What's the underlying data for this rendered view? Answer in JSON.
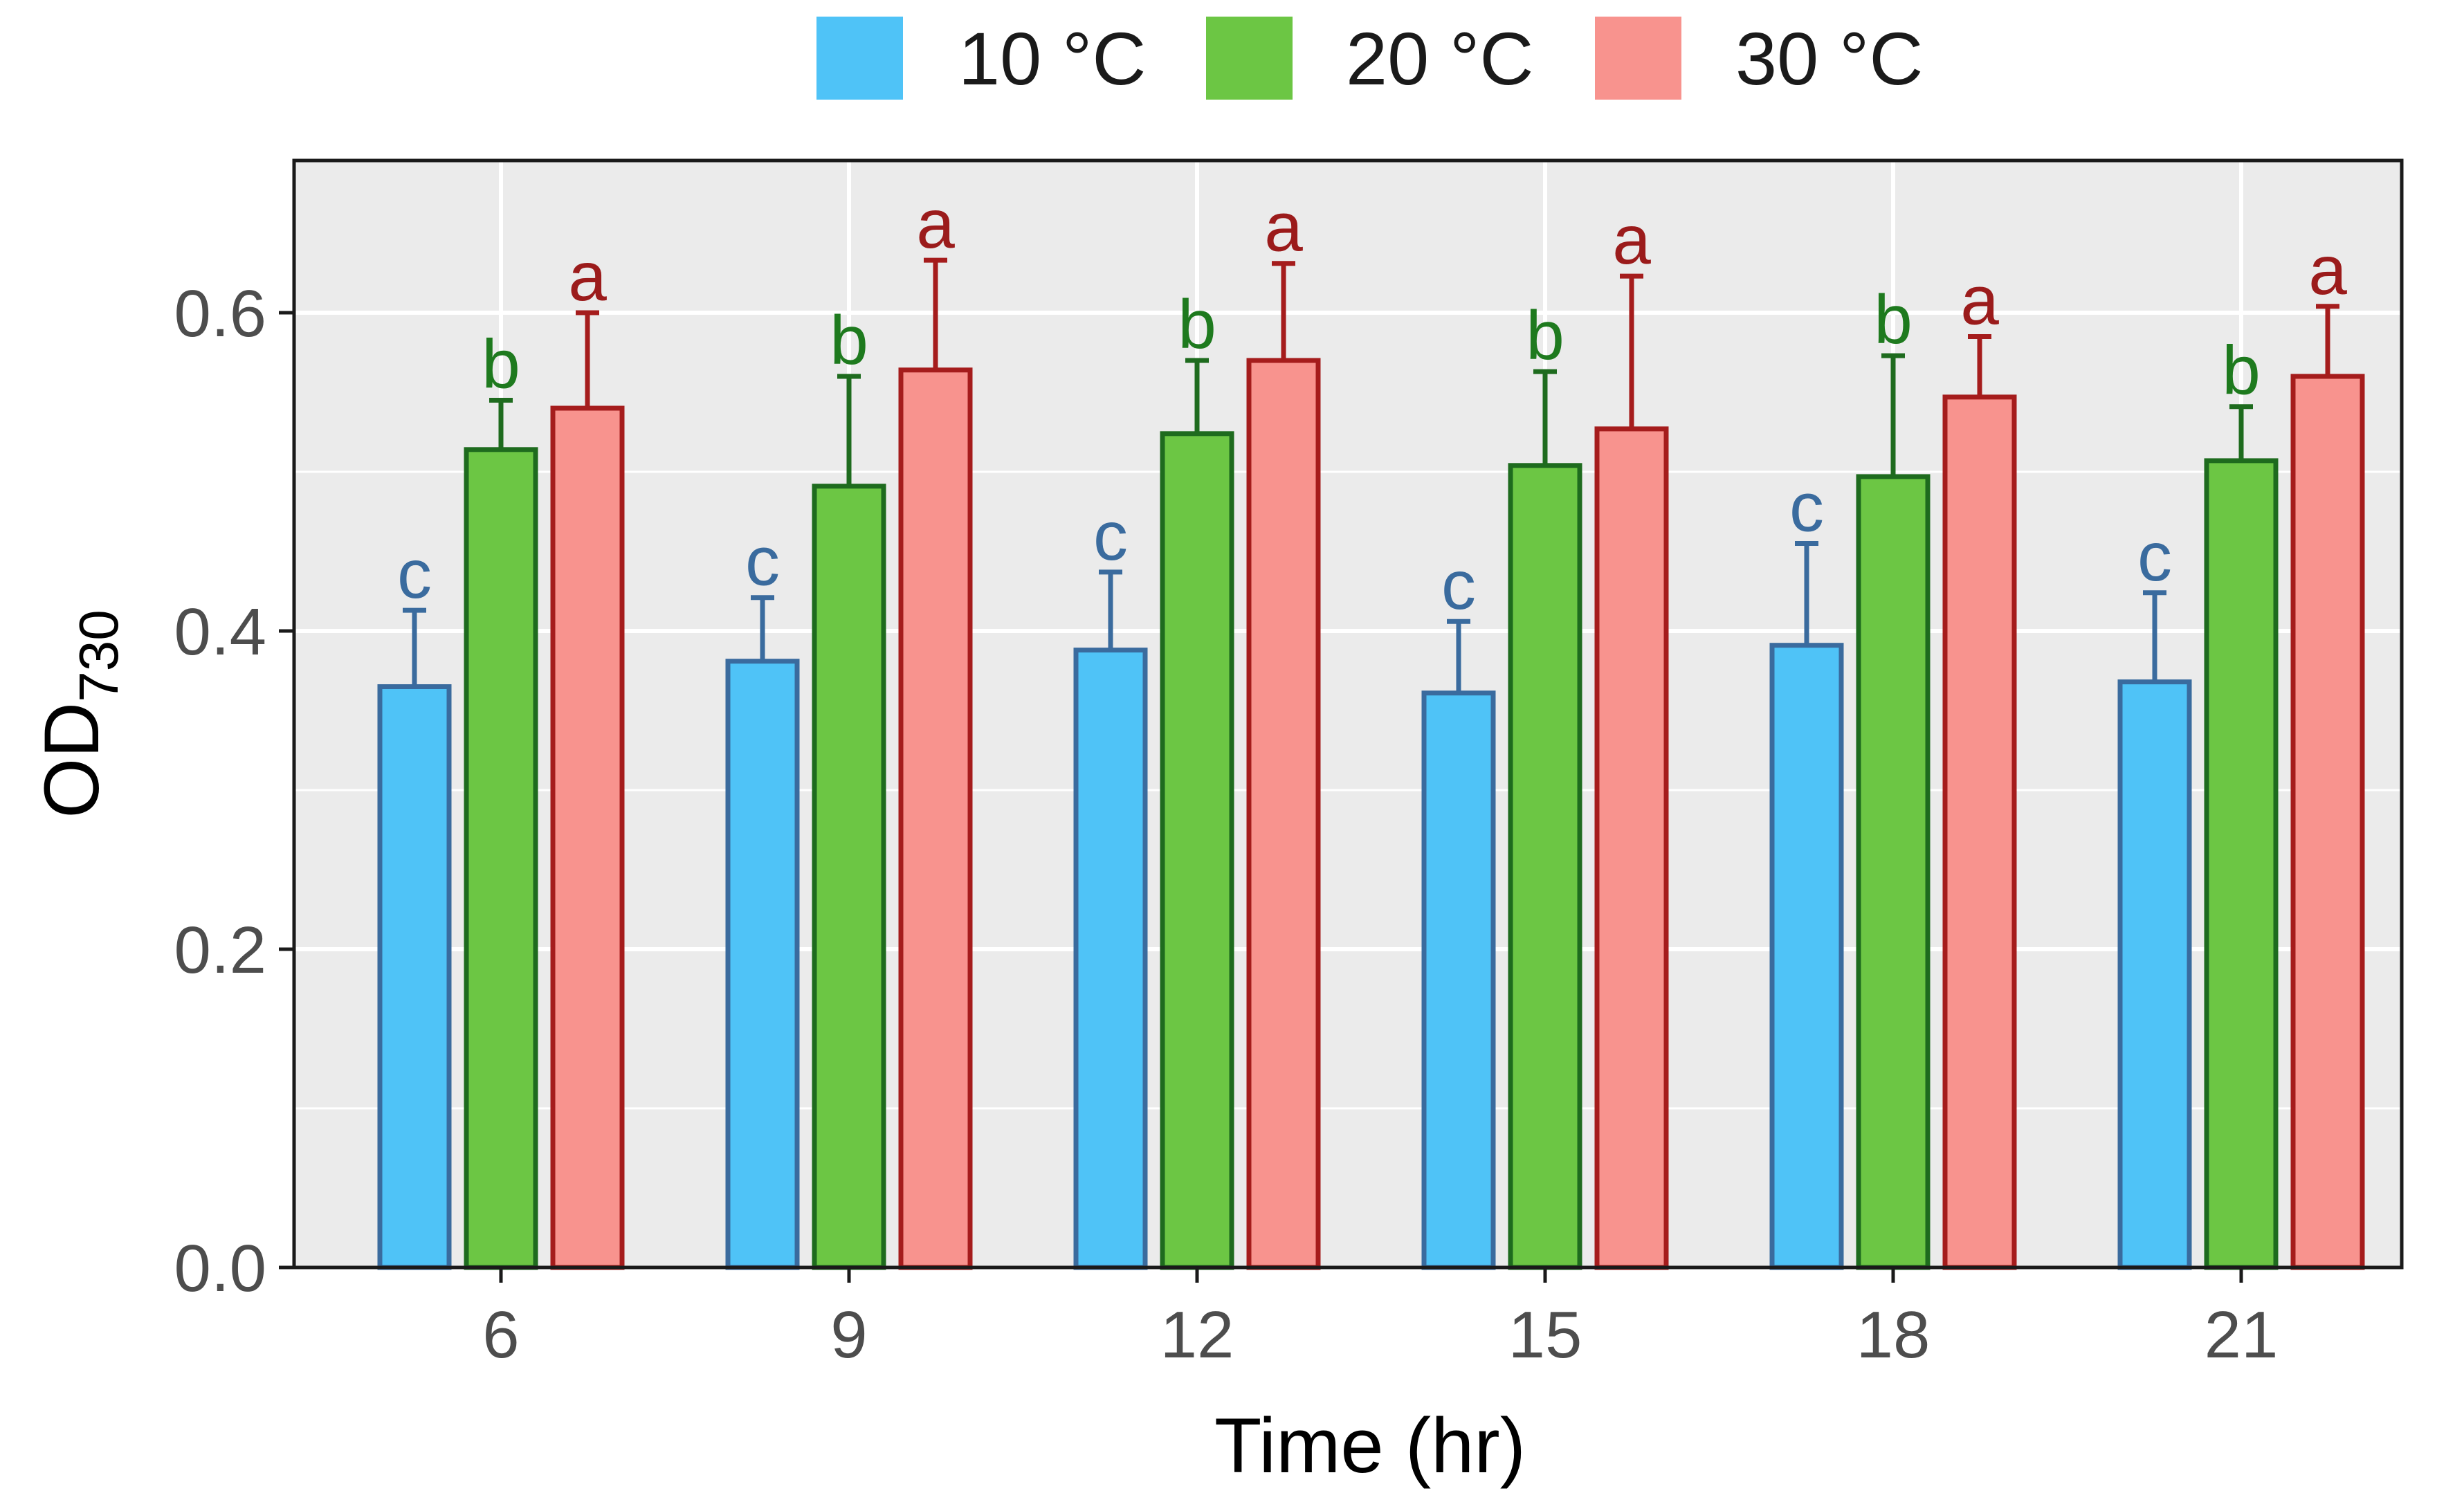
{
  "chart_data": {
    "type": "bar",
    "title": "",
    "xlabel": "Time (hr)",
    "ylabel": "OD",
    "ylabel_subscript": "730",
    "categories": [
      "6",
      "9",
      "12",
      "15",
      "18",
      "21"
    ],
    "ylim": [
      0,
      0.69
    ],
    "yticks": [
      0.0,
      0.2,
      0.4,
      0.6
    ],
    "ytick_labels": [
      "0.0",
      "0.2",
      "0.4",
      "0.6"
    ],
    "grid": true,
    "legend_position": "top",
    "series": [
      {
        "name": "10 °C",
        "fill": "#4FC3F7",
        "stroke": "#3A6B9E",
        "label_color": "#3A6B9E",
        "values": [
          0.365,
          0.381,
          0.388,
          0.361,
          0.391,
          0.368
        ],
        "errors": [
          0.048,
          0.04,
          0.049,
          0.045,
          0.064,
          0.056
        ],
        "letters": [
          "c",
          "c",
          "c",
          "c",
          "c",
          "c"
        ]
      },
      {
        "name": "20 °C",
        "fill": "#6CC644",
        "stroke": "#1E6B1E",
        "label_color": "#1E7A1E",
        "values": [
          0.514,
          0.491,
          0.524,
          0.504,
          0.497,
          0.507
        ],
        "errors": [
          0.031,
          0.069,
          0.046,
          0.059,
          0.076,
          0.034
        ],
        "letters": [
          "b",
          "b",
          "b",
          "b",
          "b",
          "b"
        ]
      },
      {
        "name": "30 °C",
        "fill": "#F8938E",
        "stroke": "#A51C1C",
        "label_color": "#9B1B1B",
        "values": [
          0.54,
          0.564,
          0.57,
          0.527,
          0.547,
          0.56
        ],
        "errors": [
          0.06,
          0.069,
          0.061,
          0.096,
          0.038,
          0.044
        ],
        "letters": [
          "a",
          "a",
          "a",
          "a",
          "a",
          "a"
        ]
      }
    ]
  },
  "colors": {
    "panel_background": "#EBEBEB",
    "grid_line": "#FFFFFF",
    "panel_border": "#1A1A1A",
    "tick_text": "#4D4D4D",
    "axis_title": "#000000"
  }
}
